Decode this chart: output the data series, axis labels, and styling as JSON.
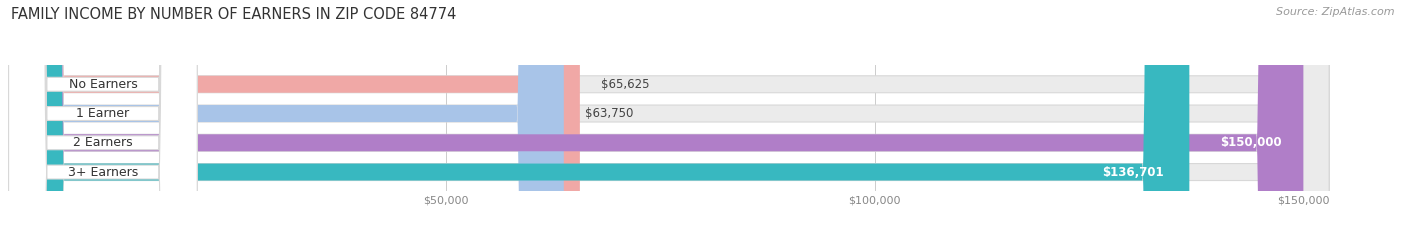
{
  "title": "FAMILY INCOME BY NUMBER OF EARNERS IN ZIP CODE 84774",
  "source": "Source: ZipAtlas.com",
  "categories": [
    "No Earners",
    "1 Earner",
    "2 Earners",
    "3+ Earners"
  ],
  "values": [
    65625,
    63750,
    150000,
    136701
  ],
  "bar_colors": [
    "#f0a8a6",
    "#a8c4e8",
    "#b07ec8",
    "#38b8c0"
  ],
  "label_colors": [
    "#444444",
    "#444444",
    "#ffffff",
    "#ffffff"
  ],
  "value_labels": [
    "$65,625",
    "$63,750",
    "$150,000",
    "$136,701"
  ],
  "x_min": 0,
  "x_max": 160000,
  "x_ticks": [
    50000,
    100000,
    150000
  ],
  "x_tick_labels": [
    "$50,000",
    "$100,000",
    "$150,000"
  ],
  "bg_color": "#ffffff",
  "bar_bg_color": "#ebebeb",
  "bar_outline_color": "#d8d8d8",
  "label_bubble_color": "#ffffff",
  "title_fontsize": 10.5,
  "source_fontsize": 8,
  "label_fontsize": 9,
  "value_fontsize": 8.5
}
